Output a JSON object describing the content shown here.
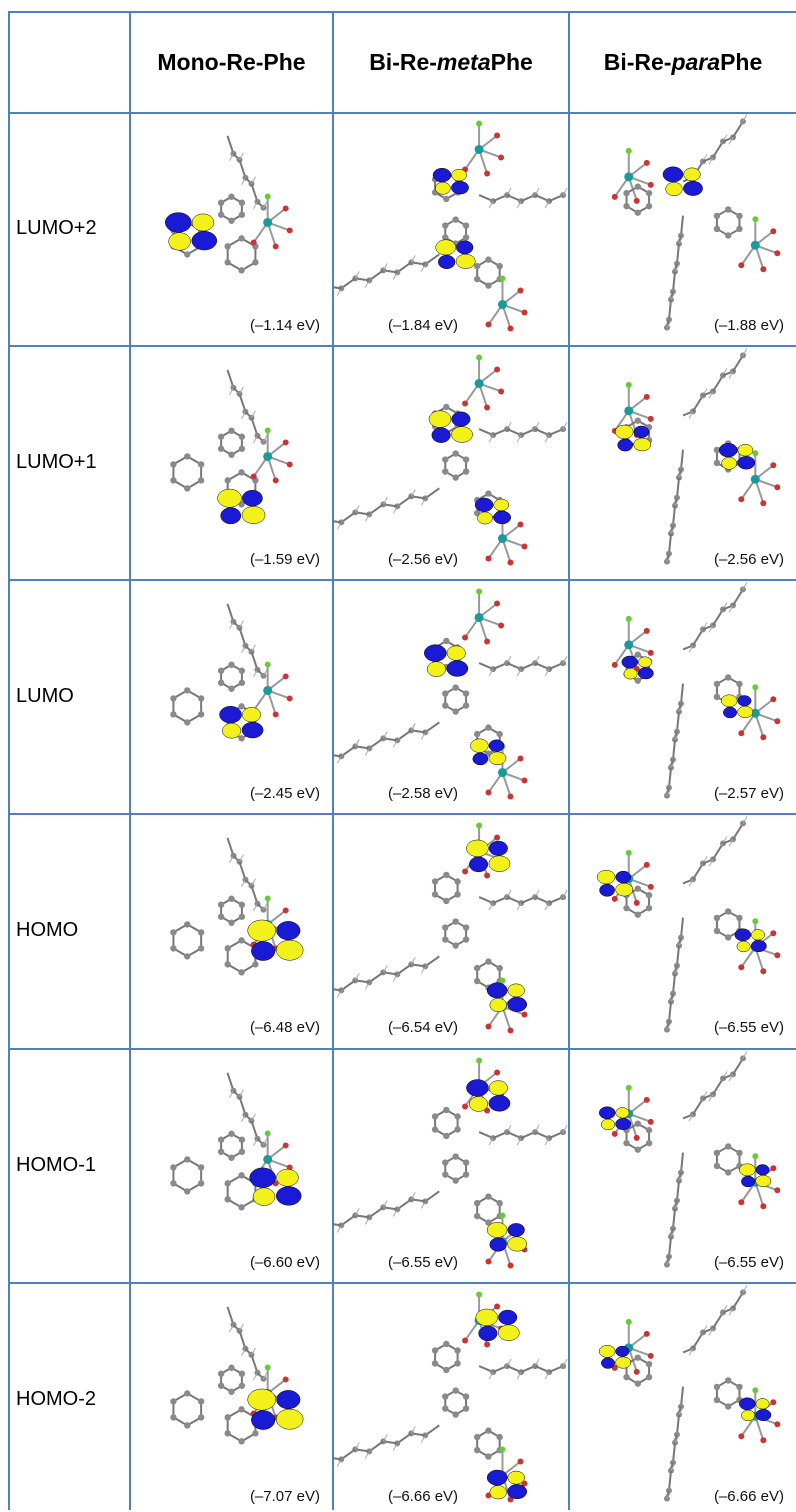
{
  "columns": [
    {
      "key": "mono",
      "pre": "Mono-Re-Phe",
      "ital": "",
      "post": ""
    },
    {
      "key": "meta",
      "pre": "Bi-Re-",
      "ital": "meta",
      "post": "Phe"
    },
    {
      "key": "para",
      "pre": "Bi-Re-",
      "ital": "para",
      "post": "Phe"
    }
  ],
  "rows": [
    {
      "label": "LUMO+2",
      "energies": [
        "(–1.14 eV)",
        "(–1.84 eV)",
        "(–1.88 eV)"
      ]
    },
    {
      "label": "LUMO+1",
      "energies": [
        "(–1.59 eV)",
        "(–2.56 eV)",
        "(–2.56 eV)"
      ]
    },
    {
      "label": "LUMO",
      "energies": [
        "(–2.45 eV)",
        "(–2.58 eV)",
        "(–2.57 eV)"
      ]
    },
    {
      "label": "HOMO",
      "energies": [
        "(–6.48 eV)",
        "(–6.54 eV)",
        "(–6.55 eV)"
      ]
    },
    {
      "label": "HOMO-1",
      "energies": [
        "(–6.60 eV)",
        "(–6.55 eV)",
        "(–6.55 eV)"
      ]
    },
    {
      "label": "HOMO-2",
      "energies": [
        "(–7.07 eV)",
        "(–6.66 eV)",
        "(–6.66 eV)"
      ]
    }
  ],
  "colors": {
    "grid": "#4f81bd",
    "lobe_blue": "#1a1ad4",
    "lobe_yellow": "#f2f21a",
    "atom": "#8a8a8a"
  }
}
